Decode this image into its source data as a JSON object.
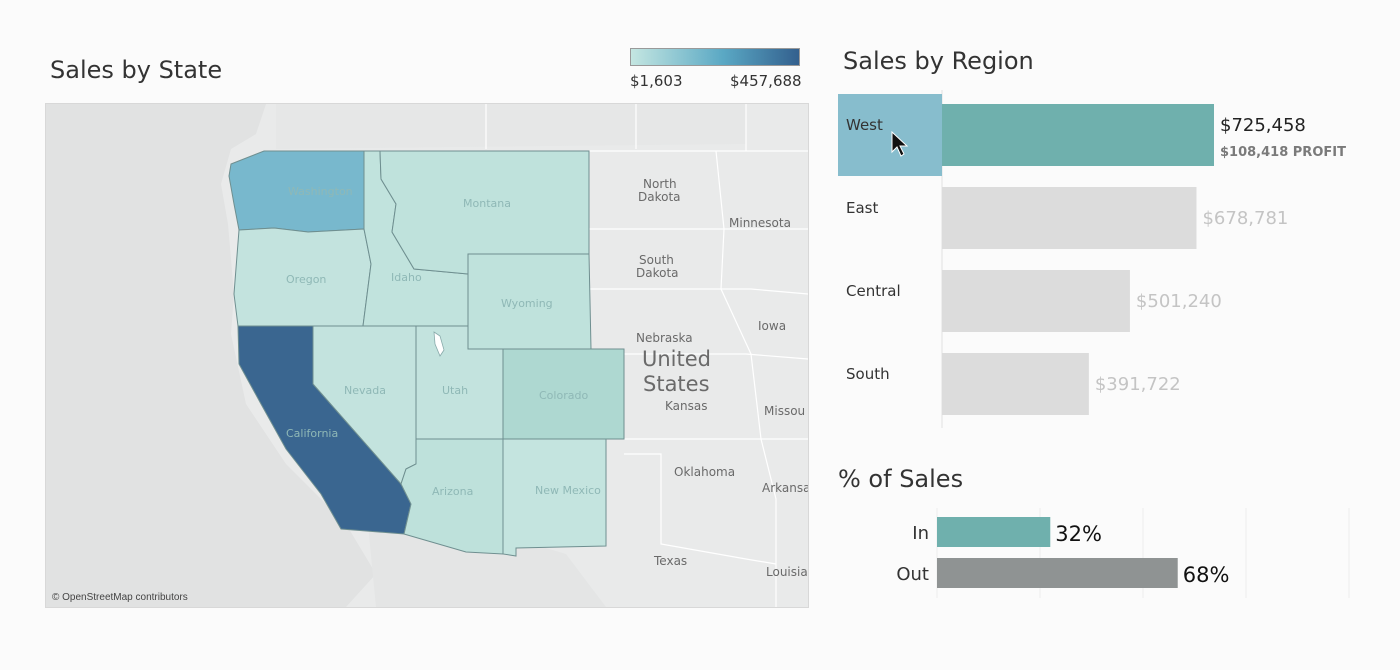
{
  "map": {
    "title": "Sales by State",
    "legend": {
      "min_label": "$1,603",
      "max_label": "$457,688",
      "color_low": "#c4e6e1",
      "color_high": "#33608e"
    },
    "attribution": "© OpenStreetMap contributors",
    "states": {
      "washington": "Washington",
      "oregon": "Oregon",
      "idaho": "Idaho",
      "montana": "Montana",
      "wyoming": "Wyoming",
      "nevada": "Nevada",
      "utah": "Utah",
      "colorado": "Colorado",
      "california": "California",
      "arizona": "Arizona",
      "new_mexico": "New Mexico"
    },
    "background_labels": {
      "north_dakota": [
        "North",
        "Dakota"
      ],
      "south_dakota": [
        "South",
        "Dakota"
      ],
      "minnesota": "Minnesota",
      "nebraska": "Nebraska",
      "iowa": "Iowa",
      "kansas": "Kansas",
      "missouri": "Missou",
      "oklahoma": "Oklahoma",
      "arkansas": "Arkansas",
      "texas": "Texas",
      "louisiana": "Louisia",
      "country": [
        "United",
        "States"
      ]
    }
  },
  "region": {
    "title": "Sales by Region",
    "selected_color": "#6fb0ad",
    "selected_label_bg": "#87bdcd",
    "unselected_color": "#dcdcdc"
  },
  "pct": {
    "title": "% of Sales"
  },
  "chart_data": [
    {
      "type": "bar",
      "orientation": "horizontal",
      "title": "Sales by Region",
      "categories": [
        "West",
        "East",
        "Central",
        "South"
      ],
      "values": [
        725458,
        678781,
        501240,
        391722
      ],
      "value_labels": [
        "$725,458",
        "$678,781",
        "$501,240",
        "$391,722"
      ],
      "selected": "West",
      "annotation": "$108,418 PROFIT"
    },
    {
      "type": "bar",
      "orientation": "horizontal",
      "title": "% of Sales",
      "categories": [
        "In",
        "Out"
      ],
      "values": [
        32,
        68
      ],
      "value_labels": [
        "32%",
        "68%"
      ],
      "colors": [
        "#6fb0ad",
        "#8f9393"
      ],
      "xlim": [
        0,
        100
      ]
    }
  ]
}
